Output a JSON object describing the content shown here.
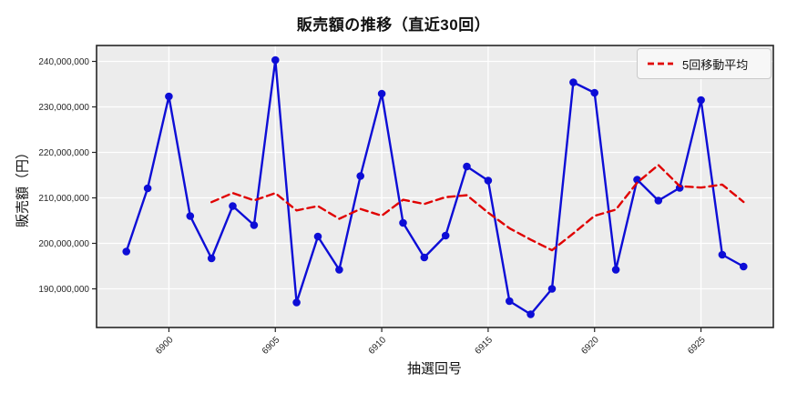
{
  "figure": {
    "title": "販売額の推移（直近30回）",
    "background_color": "#ffffff"
  },
  "legend": {
    "label": "5回移動平均",
    "position": "upper-right",
    "line_color": "#e00000",
    "line_style": "dashed"
  },
  "axes": {
    "xlabel": "抽選回号",
    "ylabel": "販売額（円）"
  },
  "chart_data": {
    "type": "line",
    "title": "販売額の推移（直近30回）",
    "xlabel": "抽選回号",
    "ylabel": "販売額（円）",
    "x_ticks": [
      6900,
      6905,
      6910,
      6915,
      6920,
      6925
    ],
    "y_ticks": [
      190000000,
      200000000,
      210000000,
      220000000,
      230000000,
      240000000
    ],
    "xlim": [
      6896.6,
      6928.4
    ],
    "ylim": [
      181500000,
      243500000
    ],
    "grid": true,
    "plot_bg": "#ececec",
    "grid_color": "#ffffff",
    "frame_color": "#262626",
    "tick_color": "#262626",
    "legend_position": "upper right",
    "series": [
      {
        "name": "販売額",
        "color": "#0d0dd6",
        "style": "solid",
        "marker": "circle",
        "x_start": 6898,
        "values": [
          198200000,
          212100000,
          232300000,
          206000000,
          196700000,
          208200000,
          204000000,
          240300000,
          187000000,
          201500000,
          194200000,
          214800000,
          232900000,
          204500000,
          196900000,
          201700000,
          216900000,
          213800000,
          187300000,
          184400000,
          190000000,
          235400000,
          233100000,
          194200000,
          214000000,
          209400000,
          212200000,
          231500000,
          197500000,
          194900000
        ]
      },
      {
        "name": "5回移動平均",
        "color": "#e00000",
        "style": "dashed",
        "marker": "none",
        "x_start": 6902,
        "values": [
          209060000,
          211060000,
          209440000,
          211040000,
          207240000,
          208200000,
          205400000,
          207560000,
          206080000,
          209580000,
          208660000,
          210160000,
          210580000,
          206760000,
          203320000,
          200820000,
          198480000,
          202180000,
          206040000,
          207420000,
          213340000,
          217220000,
          212580000,
          212260000,
          212920000,
          209100000
        ]
      }
    ]
  }
}
